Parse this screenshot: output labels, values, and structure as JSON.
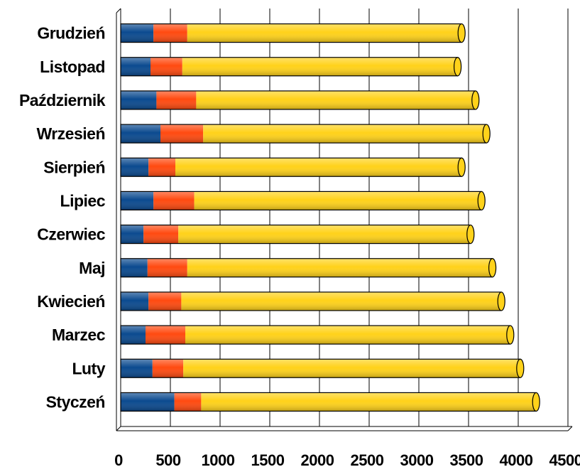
{
  "chart_data": {
    "type": "bar",
    "orientation": "horizontal",
    "stacked": true,
    "categories": [
      "Styczeń",
      "Luty",
      "Marzec",
      "Kwiecień",
      "Maj",
      "Czerwiec",
      "Lipiec",
      "Sierpień",
      "Wrzesień",
      "Październik",
      "Listopad",
      "Grudzień"
    ],
    "series": [
      {
        "color": "#0b4a8f",
        "values": [
          540,
          320,
          250,
          280,
          270,
          230,
          330,
          280,
          400,
          360,
          300,
          330
        ]
      },
      {
        "color": "#ff4a10",
        "values": [
          270,
          310,
          400,
          330,
          400,
          350,
          410,
          270,
          430,
          400,
          320,
          340
        ]
      },
      {
        "color": "#ffd21a",
        "values": [
          3370,
          3390,
          3270,
          3220,
          3070,
          2940,
          2890,
          2880,
          2850,
          2810,
          2770,
          2760
        ]
      }
    ],
    "xlim": [
      0,
      4500
    ],
    "x_ticks": [
      "0",
      "500",
      "1000",
      "1500",
      "2000",
      "2500",
      "3000",
      "3500",
      "4000",
      "4500"
    ],
    "grid": true,
    "title": "",
    "xlabel": "",
    "ylabel": ""
  }
}
